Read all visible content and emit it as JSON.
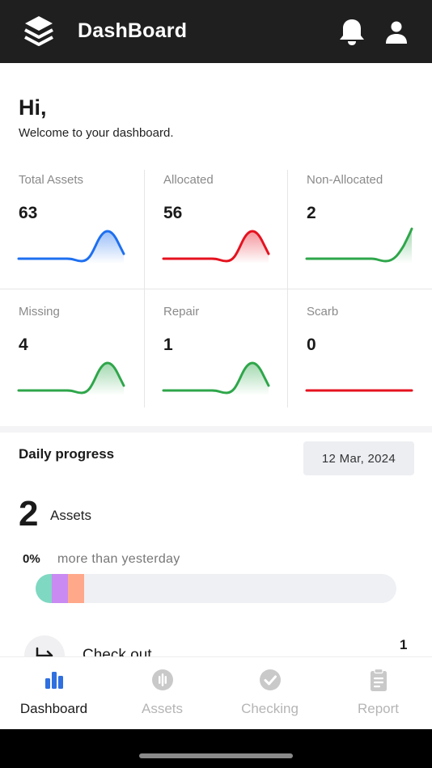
{
  "header": {
    "title": "DashBoard",
    "logo_icon": "layers-icon",
    "bell_icon": "bell-icon",
    "profile_icon": "user-icon"
  },
  "greeting": {
    "title": "Hi,",
    "subtitle": "Welcome to your dashboard."
  },
  "stats": [
    {
      "label": "Total Assets",
      "value": "63",
      "color": "#1e6ff0",
      "trend": "peak"
    },
    {
      "label": "Allocated",
      "value": "56",
      "color": "#e5121f",
      "trend": "peak"
    },
    {
      "label": "Non-Allocated",
      "value": "2",
      "color": "#2ea64a",
      "trend": "rise"
    },
    {
      "label": "Missing",
      "value": "4",
      "color": "#2ea64a",
      "trend": "peak"
    },
    {
      "label": "Repair",
      "value": "1",
      "color": "#2ea64a",
      "trend": "peak"
    },
    {
      "label": "Scarb",
      "value": "0",
      "color": "#e5121f",
      "trend": "flat"
    }
  ],
  "daily_progress": {
    "title": "Daily progress",
    "date": "12 Mar, 2024",
    "count": "2",
    "unit": "Assets",
    "percent": "0%",
    "percent_note": "more than yesterday",
    "segments": [
      {
        "color": "#7fd8c2",
        "fraction": 0.045
      },
      {
        "color": "#c98af2",
        "fraction": 0.045
      },
      {
        "color": "#ffa98a",
        "fraction": 0.045
      }
    ]
  },
  "activity": [
    {
      "label": "Check out",
      "count": "1",
      "icon": "check-out-icon"
    }
  ],
  "bottom_nav": [
    {
      "label": "Dashboard",
      "icon": "bar-chart-icon",
      "active": true
    },
    {
      "label": "Assets",
      "icon": "assets-icon",
      "active": false
    },
    {
      "label": "Checking",
      "icon": "check-circle-icon",
      "active": false
    },
    {
      "label": "Report",
      "icon": "clipboard-icon",
      "active": false
    }
  ],
  "colors": {
    "header_bg": "#1f1f1f",
    "accent": "#1e6ff0"
  }
}
